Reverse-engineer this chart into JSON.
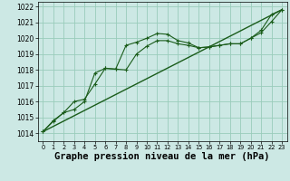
{
  "bg_color": "#cce8e4",
  "grid_color": "#99ccbb",
  "line_color": "#1a5c1a",
  "xlabel": "Graphe pression niveau de la mer (hPa)",
  "ylim": [
    1013.5,
    1022.3
  ],
  "xlim": [
    -0.5,
    23.5
  ],
  "yticks": [
    1014,
    1015,
    1016,
    1017,
    1018,
    1019,
    1020,
    1021,
    1022
  ],
  "xticks": [
    0,
    1,
    2,
    3,
    4,
    5,
    6,
    7,
    8,
    9,
    10,
    11,
    12,
    13,
    14,
    15,
    16,
    17,
    18,
    19,
    20,
    21,
    22,
    23
  ],
  "line1_x": [
    0,
    1,
    2,
    3,
    4,
    5,
    6,
    7,
    8,
    9,
    10,
    11,
    12,
    13,
    14,
    15,
    16,
    17,
    18,
    19,
    20,
    21,
    22,
    23
  ],
  "line1_y": [
    1014.1,
    1014.8,
    1015.3,
    1015.5,
    1016.0,
    1017.8,
    1018.1,
    1018.05,
    1019.55,
    1019.75,
    1020.0,
    1020.3,
    1020.25,
    1019.85,
    1019.7,
    1019.4,
    1019.45,
    1019.55,
    1019.65,
    1019.65,
    1020.0,
    1020.35,
    1021.05,
    1021.8
  ],
  "line2_x": [
    0,
    1,
    2,
    3,
    4,
    5,
    6,
    7,
    8,
    9,
    10,
    11,
    12,
    13,
    14,
    15,
    16,
    17,
    18,
    19,
    20,
    21,
    22,
    23
  ],
  "line2_y": [
    1014.1,
    1014.75,
    1015.3,
    1016.0,
    1016.15,
    1017.1,
    1018.1,
    1018.05,
    1018.0,
    1019.0,
    1019.5,
    1019.85,
    1019.85,
    1019.65,
    1019.55,
    1019.4,
    1019.45,
    1019.55,
    1019.65,
    1019.65,
    1020.0,
    1020.5,
    1021.5,
    1021.8
  ],
  "line3_x": [
    0,
    23
  ],
  "line3_y": [
    1014.1,
    1021.8
  ],
  "fontsize_tick": 5.5,
  "fontsize_label": 7.5
}
